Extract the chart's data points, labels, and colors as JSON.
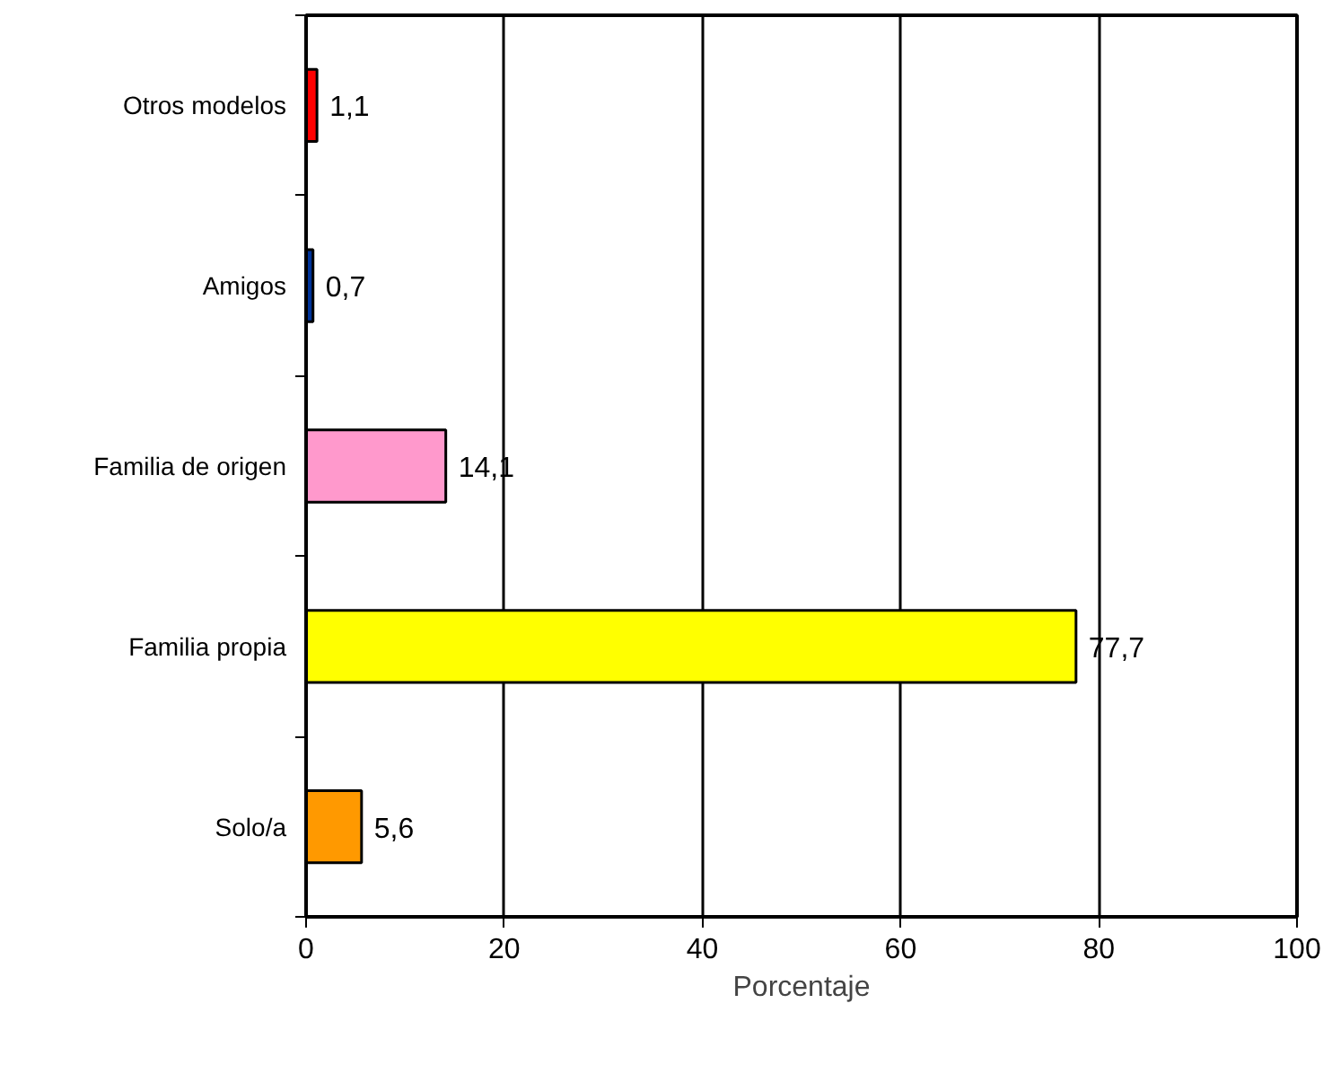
{
  "chart_data": {
    "type": "bar",
    "orientation": "horizontal",
    "xlabel": "Porcentaje",
    "categories": [
      "Otros modelos",
      "Amigos",
      "Familia de origen",
      "Familia propia",
      "Solo/a"
    ],
    "values": [
      1.1,
      0.7,
      14.1,
      77.7,
      5.6
    ],
    "colors": [
      "#ff0000",
      "#003399",
      "#ff99cc",
      "#ffff00",
      "#ff9900"
    ],
    "value_labels": [
      "1,1",
      "0,7",
      "14,1",
      "77,7",
      "5,6"
    ],
    "xlim": [
      0,
      100
    ],
    "xticks": [
      0,
      20,
      40,
      60,
      80,
      100
    ],
    "grid": "x"
  }
}
